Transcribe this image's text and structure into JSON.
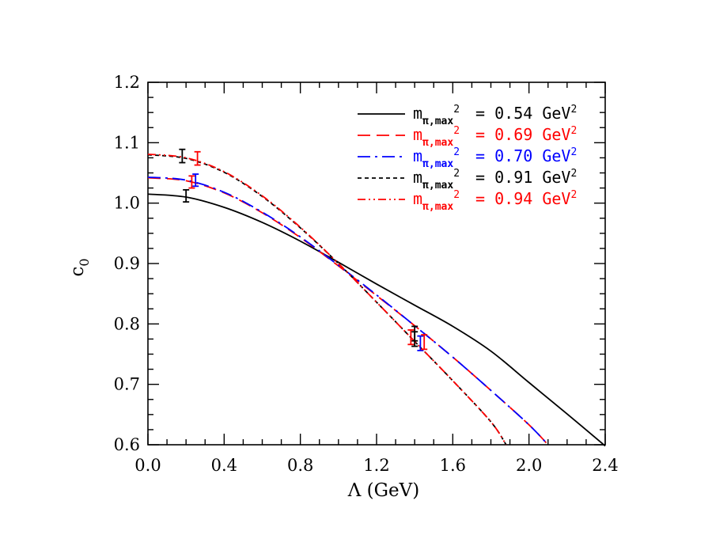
{
  "chart_data": {
    "type": "line",
    "xlabel": "Λ (GeV)",
    "ylabel": "c",
    "ylabel_sub": "0",
    "xlim": [
      0.0,
      2.4
    ],
    "ylim": [
      0.6,
      1.2
    ],
    "x_ticks": [
      "0.0",
      "0.4",
      "0.8",
      "1.2",
      "1.6",
      "2.0",
      "2.4"
    ],
    "y_ticks": [
      "0.6",
      "0.7",
      "0.8",
      "0.9",
      "1.0",
      "1.1",
      "1.2"
    ],
    "grid": false,
    "legend_position": "top-right",
    "series": [
      {
        "name_main": "m",
        "name_sub": "π,max",
        "name_sup": "2",
        "name_value": "= 0.54 GeV",
        "name_unit_sup": "2",
        "color": "#000000",
        "dash": "solid",
        "x": [
          0.0,
          0.2,
          0.4,
          0.6,
          0.8,
          1.0,
          1.2,
          1.4,
          1.6,
          1.8,
          2.0,
          2.2,
          2.4
        ],
        "y": [
          1.015,
          1.01,
          0.993,
          0.968,
          0.937,
          0.902,
          0.866,
          0.831,
          0.796,
          0.755,
          0.703,
          0.651,
          0.598
        ],
        "errorbars": [
          {
            "x": 0.2,
            "y": 1.012,
            "err": 0.01
          },
          {
            "x": 1.4,
            "y": 0.784,
            "err": 0.012
          }
        ]
      },
      {
        "name_main": "m",
        "name_sub": "π,max",
        "name_sup": "2",
        "name_value": "= 0.69 GeV",
        "name_unit_sup": "2",
        "color": "#ff0000",
        "dash": "long-dash",
        "x": [
          0.0,
          0.2,
          0.4,
          0.6,
          0.8,
          1.0,
          1.2,
          1.4,
          1.6,
          1.8,
          2.0,
          2.1
        ],
        "y": [
          1.042,
          1.037,
          1.017,
          0.984,
          0.943,
          0.896,
          0.847,
          0.797,
          0.745,
          0.69,
          0.633,
          0.6
        ],
        "errorbars": [
          {
            "x": 0.23,
            "y": 1.035,
            "err": 0.01
          },
          {
            "x": 1.38,
            "y": 0.778,
            "err": 0.012
          }
        ]
      },
      {
        "name_main": "m",
        "name_sub": "π,max",
        "name_sup": "2",
        "name_value": "= 0.70 GeV",
        "name_unit_sup": "2",
        "color": "#0000ff",
        "dash": "dash-dot",
        "x": [
          0.0,
          0.2,
          0.4,
          0.6,
          0.8,
          1.0,
          1.2,
          1.4,
          1.6,
          1.8,
          2.0,
          2.1
        ],
        "y": [
          1.043,
          1.038,
          1.018,
          0.985,
          0.944,
          0.897,
          0.848,
          0.797,
          0.745,
          0.69,
          0.633,
          0.6
        ],
        "errorbars": [
          {
            "x": 0.25,
            "y": 1.038,
            "err": 0.01
          },
          {
            "x": 1.43,
            "y": 0.768,
            "err": 0.012
          }
        ]
      },
      {
        "name_main": "m",
        "name_sub": "π,max",
        "name_sup": "2",
        "name_value": "= 0.91 GeV",
        "name_unit_sup": "2",
        "color": "#000000",
        "dash": "short-dash",
        "x": [
          0.0,
          0.2,
          0.4,
          0.6,
          0.8,
          1.0,
          1.2,
          1.4,
          1.6,
          1.8,
          1.88
        ],
        "y": [
          1.08,
          1.074,
          1.051,
          1.011,
          0.959,
          0.9,
          0.836,
          0.771,
          0.706,
          0.638,
          0.6
        ],
        "errorbars": [
          {
            "x": 0.18,
            "y": 1.078,
            "err": 0.011
          },
          {
            "x": 1.4,
            "y": 0.775,
            "err": 0.012
          }
        ]
      },
      {
        "name_main": "m",
        "name_sub": "π,max",
        "name_sup": "2",
        "name_value": "= 0.94 GeV",
        "name_unit_sup": "2",
        "color": "#ff0000",
        "dash": "dash-dot-dot",
        "x": [
          0.0,
          0.2,
          0.4,
          0.6,
          0.8,
          1.0,
          1.2,
          1.4,
          1.6,
          1.8,
          1.88
        ],
        "y": [
          1.081,
          1.075,
          1.052,
          1.012,
          0.96,
          0.9,
          0.836,
          0.771,
          0.706,
          0.638,
          0.6
        ],
        "errorbars": [
          {
            "x": 0.26,
            "y": 1.074,
            "err": 0.011
          },
          {
            "x": 1.45,
            "y": 0.77,
            "err": 0.012
          }
        ]
      }
    ]
  }
}
